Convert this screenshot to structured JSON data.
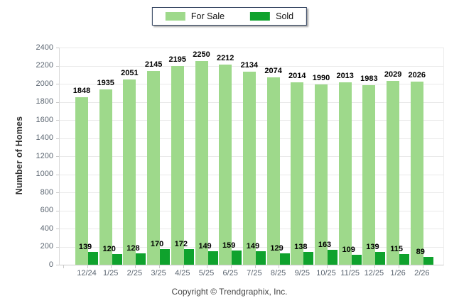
{
  "chart_data": {
    "type": "bar",
    "title": "",
    "categories": [
      "12/24",
      "1/25",
      "2/25",
      "3/25",
      "4/25",
      "5/25",
      "6/25",
      "7/25",
      "8/25",
      "9/25",
      "10/25",
      "11/25",
      "12/25",
      "1/26",
      "2/26"
    ],
    "series": [
      {
        "name": "For Sale",
        "color": "#9ED98B",
        "values": [
          1848,
          1935,
          2051,
          2145,
          2195,
          2250,
          2212,
          2134,
          2074,
          2014,
          1990,
          2013,
          1983,
          2029,
          2026
        ]
      },
      {
        "name": "Sold",
        "color": "#0FA22D",
        "values": [
          139,
          120,
          128,
          170,
          172,
          149,
          159,
          149,
          129,
          138,
          163,
          109,
          139,
          115,
          89
        ]
      }
    ],
    "xlabel": "",
    "ylabel": "Number of Homes",
    "ylim": [
      0,
      2400
    ],
    "ytick_step": 200,
    "grid": true,
    "legend_position": "top",
    "value_labels": true
  },
  "colors": {
    "grid": "#E9E9E9",
    "axis": "#C9C9C9",
    "tick_text": "#5A6470",
    "value_text": "#000000",
    "legend_border": "#2E3F5C"
  },
  "footer": {
    "copyright": "Copyright © Trendgraphix, Inc."
  }
}
